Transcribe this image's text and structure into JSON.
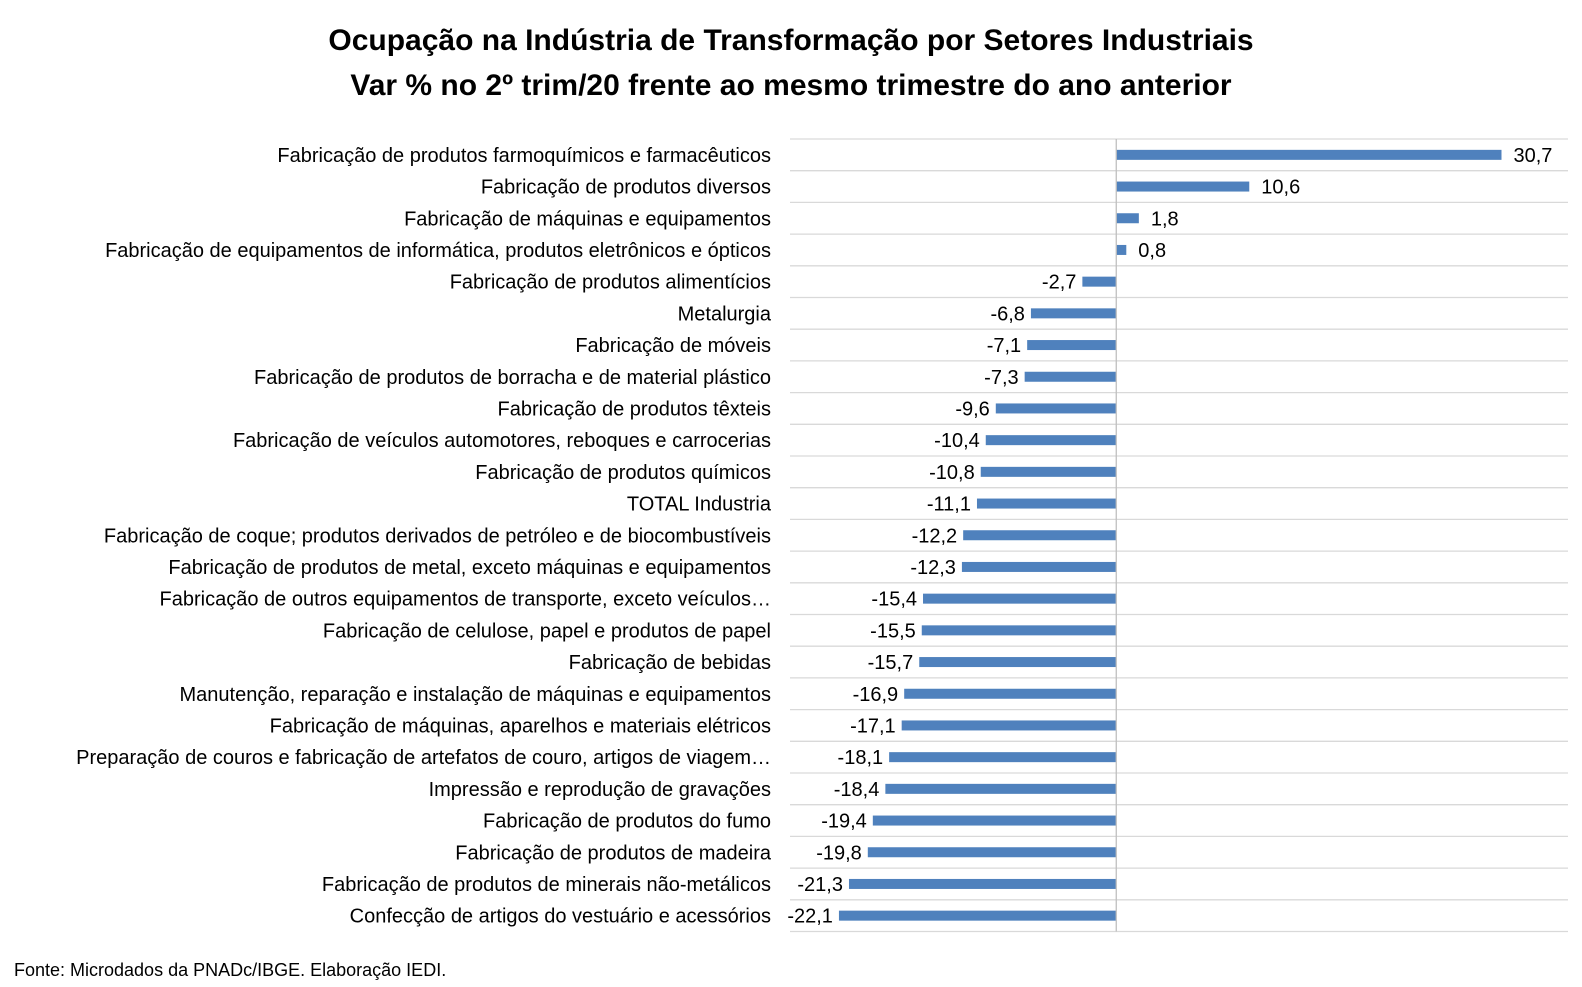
{
  "chart_data": {
    "type": "bar",
    "orientation": "horizontal",
    "title": "Ocupação na Indústria de Transformação por Setores Industriais",
    "subtitle": "Var % no 2º trim/20 frente ao mesmo trimestre do ano anterior",
    "categories": [
      "Fabricação de produtos farmoquímicos e farmacêuticos",
      "Fabricação de produtos diversos",
      "Fabricação de máquinas e equipamentos",
      "Fabricação de equipamentos de informática, produtos eletrônicos e ópticos",
      "Fabricação de produtos alimentícios",
      "Metalurgia",
      "Fabricação de móveis",
      "Fabricação de produtos de borracha e de material plástico",
      "Fabricação de produtos têxteis",
      "Fabricação de veículos automotores, reboques e carrocerias",
      "Fabricação de produtos químicos",
      "TOTAL Industria",
      "Fabricação de coque; produtos derivados de petróleo e de biocombustíveis",
      "Fabricação de produtos de metal, exceto máquinas e equipamentos",
      "Fabricação de outros equipamentos de transporte, exceto veículos…",
      "Fabricação de celulose, papel e produtos de papel",
      "Fabricação de bebidas",
      "Manutenção, reparação e instalação de máquinas e equipamentos",
      "Fabricação de máquinas, aparelhos e materiais elétricos",
      "Preparação de couros e fabricação de artefatos de couro, artigos de viagem…",
      "Impressão e reprodução de gravações",
      "Fabricação de produtos do fumo",
      "Fabricação de produtos de madeira",
      "Fabricação de produtos de minerais não-metálicos",
      "Confecção de artigos do vestuário e acessórios"
    ],
    "values": [
      30.7,
      10.6,
      1.8,
      0.8,
      -2.7,
      -6.8,
      -7.1,
      -7.3,
      -9.6,
      -10.4,
      -10.8,
      -11.1,
      -12.2,
      -12.3,
      -15.4,
      -15.5,
      -15.7,
      -16.9,
      -17.1,
      -18.1,
      -18.4,
      -19.4,
      -19.8,
      -21.3,
      -22.1
    ],
    "value_labels": [
      "30,7",
      "10,6",
      "1,8",
      "0,8",
      "-2,7",
      "-6,8",
      "-7,1",
      "-7,3",
      "-9,6",
      "-10,4",
      "-10,8",
      "-11,1",
      "-12,2",
      "-12,3",
      "-15,4",
      "-15,5",
      "-15,7",
      "-16,9",
      "-17,1",
      "-18,1",
      "-18,4",
      "-19,4",
      "-19,8",
      "-21,3",
      "-22,1"
    ],
    "xlim": [
      -26,
      36
    ],
    "bar_color": "#4f81bd",
    "grid": true,
    "legend": "none"
  },
  "source": "Fonte: Microdados da PNADc/IBGE. Elaboração IEDI."
}
